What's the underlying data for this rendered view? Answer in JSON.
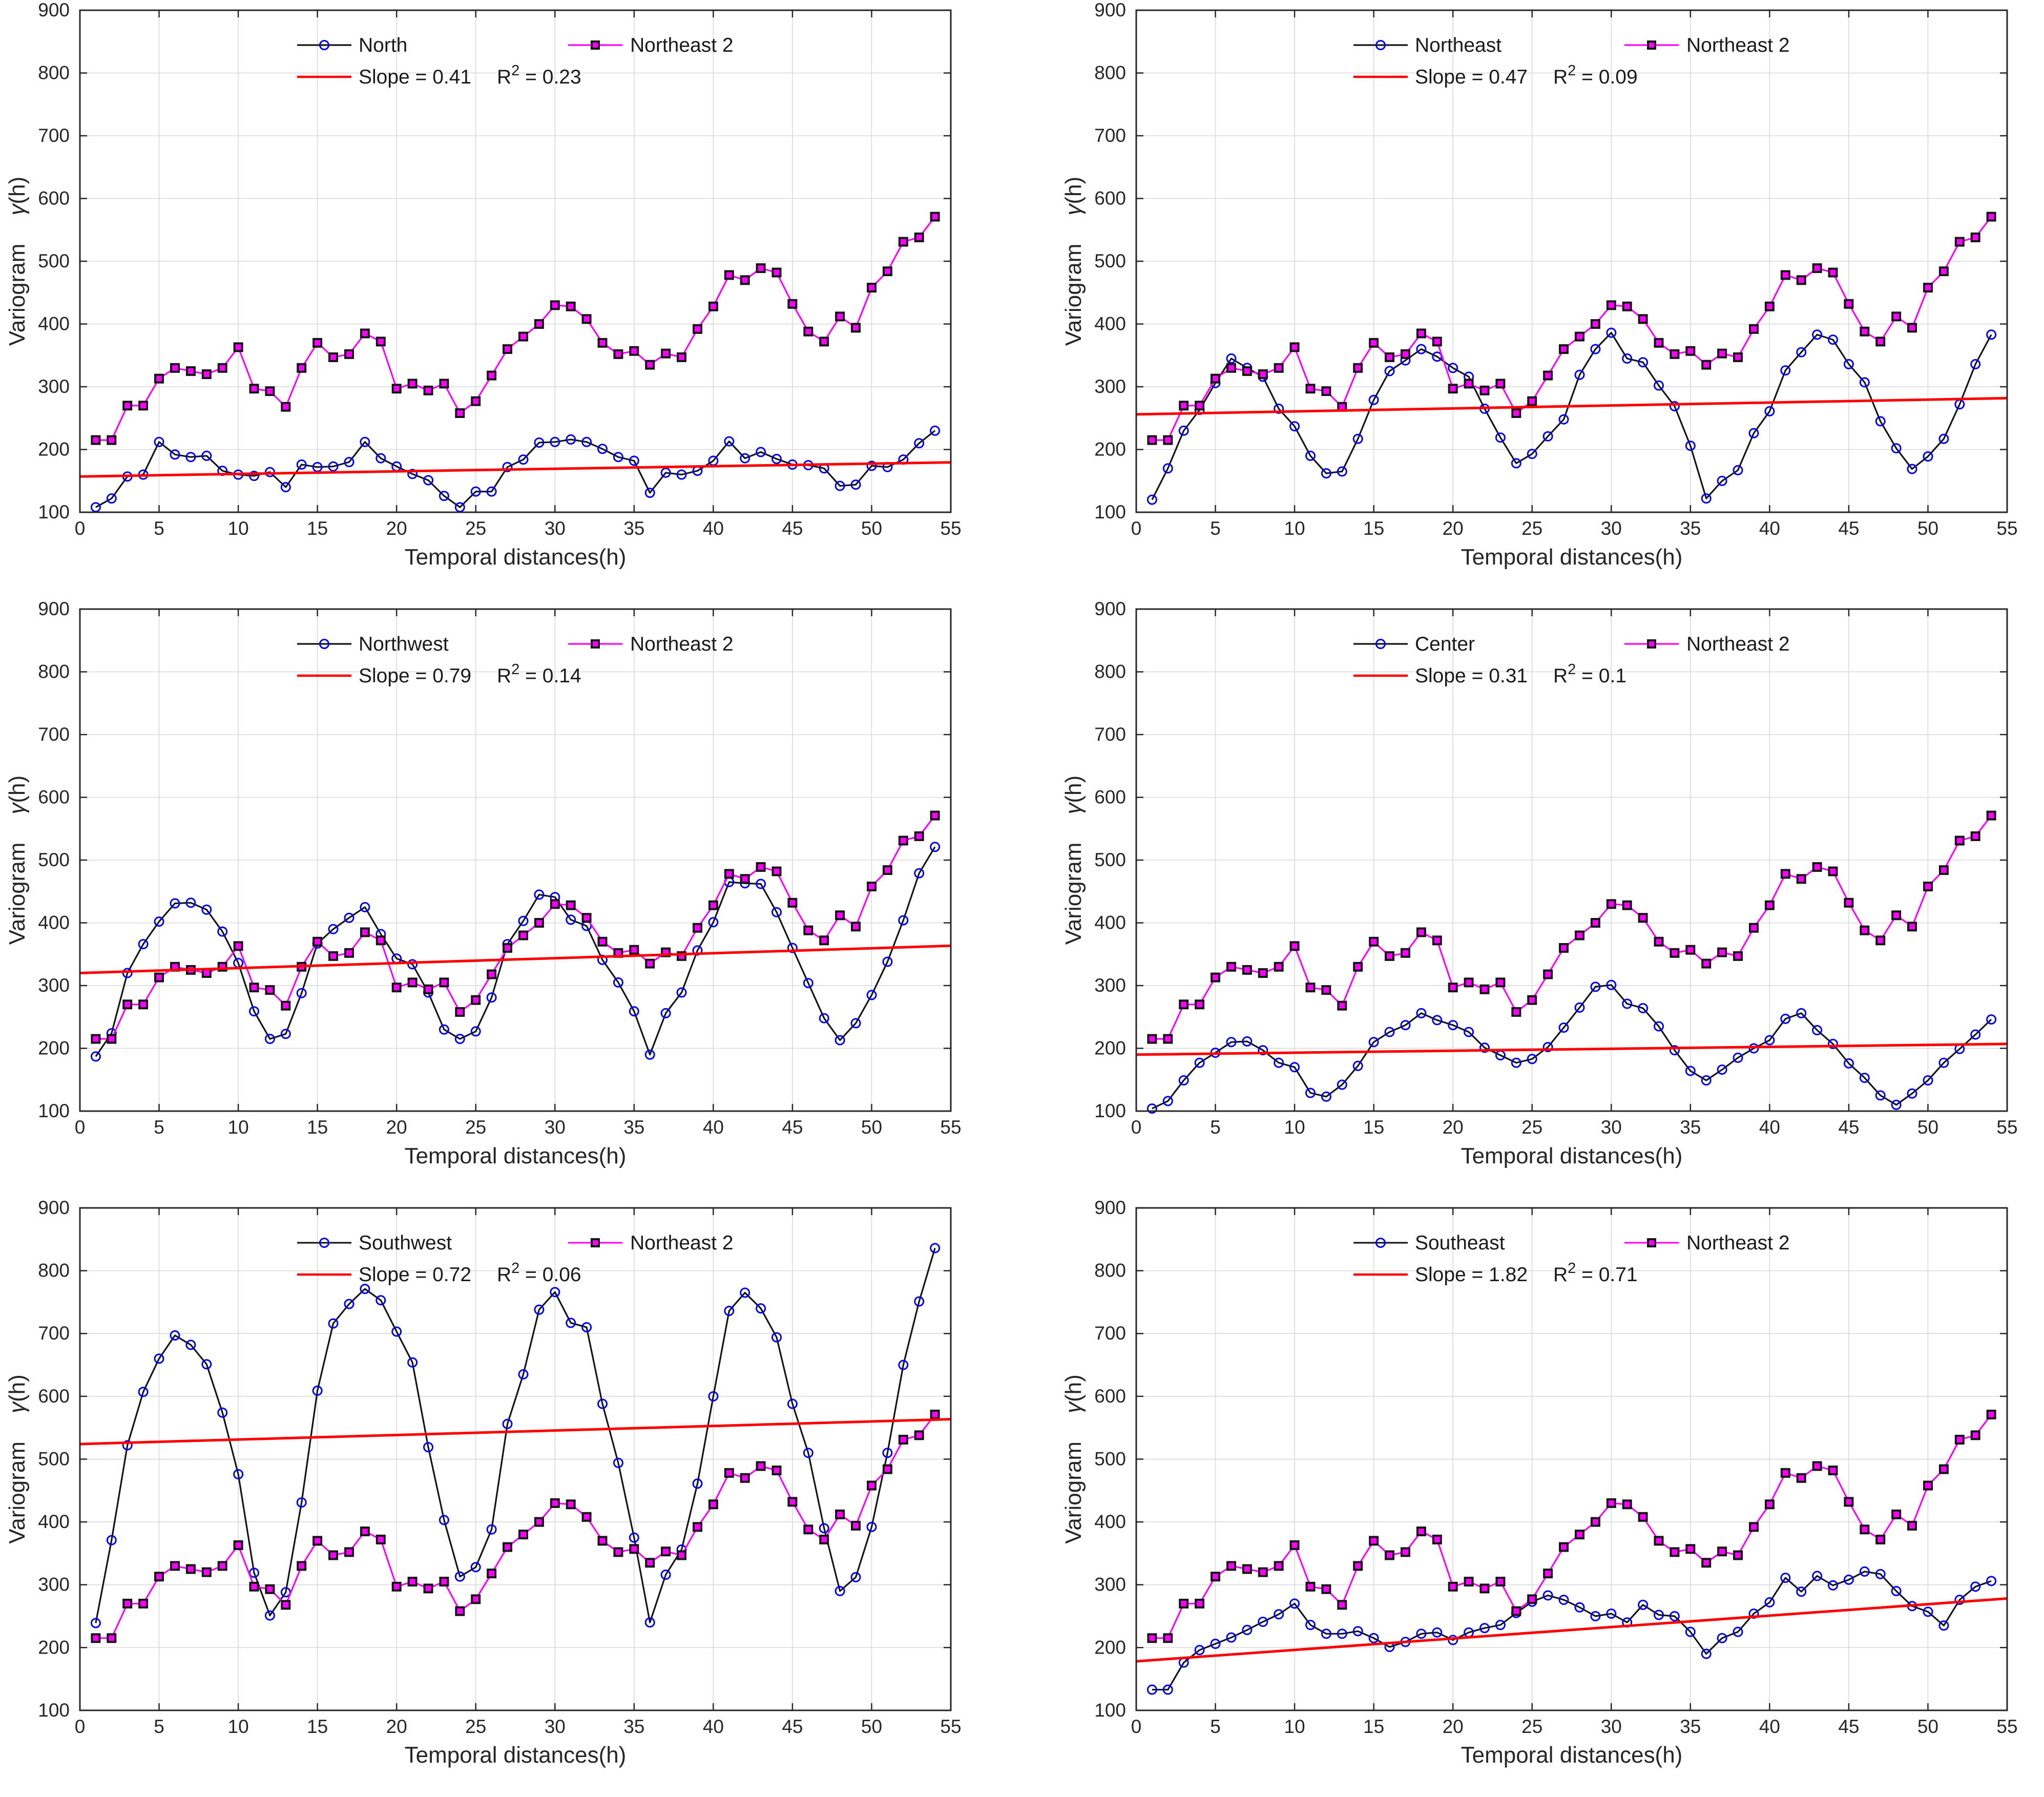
{
  "figure": {
    "background": "#ffffff",
    "xlabel": "Temporal distances(h)",
    "ylabel_main": "Variogram",
    "ylabel_symbol": "γ",
    "ylabel_units": "(h)",
    "xlim": [
      0,
      55
    ],
    "ylim": [
      100,
      900
    ],
    "xticks": [
      0,
      5,
      10,
      15,
      20,
      25,
      30,
      35,
      40,
      45,
      50,
      55
    ],
    "yticks": [
      100,
      200,
      300,
      400,
      500,
      600,
      700,
      800,
      900
    ],
    "grid": true,
    "legend_position": "top-inside",
    "colors": {
      "region_line": "#141414",
      "region_marker": "#0000f0",
      "reference_line": "#ff00ff",
      "reference_marker_fill": "#ff00ff",
      "reference_marker_edge": "#141414",
      "trend": "#ff0000",
      "grid": "#d9d9d9",
      "axis": "#262626"
    }
  },
  "chart_data": {
    "type": "line",
    "xlabel": "Temporal distances(h)",
    "ylabel": "Variogram γ(h)",
    "x": [
      1,
      2,
      3,
      4,
      5,
      6,
      7,
      8,
      9,
      10,
      11,
      12,
      13,
      14,
      15,
      16,
      17,
      18,
      19,
      20,
      21,
      22,
      23,
      24,
      25,
      26,
      27,
      28,
      29,
      30,
      31,
      32,
      33,
      34,
      35,
      36,
      37,
      38,
      39,
      40,
      41,
      42,
      43,
      44,
      45,
      46,
      47,
      48,
      49,
      50,
      51,
      52,
      53,
      54
    ],
    "reference_series": {
      "name": "Northeast 2",
      "marker": "square",
      "values": [
        215,
        215,
        270,
        270,
        313,
        330,
        325,
        320,
        330,
        363,
        297,
        293,
        268,
        330,
        370,
        347,
        352,
        385,
        372,
        297,
        305,
        294,
        305,
        258,
        277,
        318,
        360,
        380,
        400,
        430,
        428,
        408,
        370,
        352,
        357,
        335,
        353,
        347,
        392,
        428,
        478,
        470,
        489,
        482,
        432,
        388,
        372,
        412,
        394,
        458,
        484,
        531,
        538,
        571
      ]
    },
    "subplots": [
      {
        "region": "North",
        "marker": "circle",
        "slope": 0.41,
        "intercept": 157,
        "r2": 0.23,
        "slope_label": "Slope = 0.41",
        "r2_value": "0.23",
        "values": [
          108,
          122,
          157,
          160,
          212,
          192,
          188,
          190,
          166,
          160,
          158,
          164,
          140,
          176,
          172,
          173,
          180,
          212,
          186,
          173,
          161,
          151,
          126,
          108,
          133,
          133,
          172,
          184,
          211,
          212,
          216,
          212,
          201,
          188,
          182,
          131,
          163,
          160,
          166,
          182,
          213,
          186,
          196,
          185,
          176,
          175,
          170,
          142,
          144,
          174,
          172,
          184,
          210,
          230
        ]
      },
      {
        "region": "Northeast",
        "marker": "circle",
        "slope": 0.47,
        "intercept": 256,
        "r2": 0.09,
        "slope_label": "Slope = 0.47",
        "r2_value": "0.09",
        "values": [
          120,
          170,
          230,
          263,
          306,
          345,
          330,
          316,
          265,
          237,
          190,
          162,
          165,
          217,
          279,
          325,
          342,
          360,
          348,
          330,
          316,
          265,
          219,
          178,
          193,
          221,
          248,
          319,
          360,
          386,
          345,
          339,
          302,
          269,
          206,
          122,
          150,
          167,
          226,
          261,
          326,
          355,
          383,
          375,
          336,
          307,
          245,
          202,
          169,
          189,
          217,
          272,
          336,
          383
        ]
      },
      {
        "region": "Northwest",
        "marker": "circle",
        "slope": 0.79,
        "intercept": 320,
        "r2": 0.14,
        "slope_label": "Slope = 0.79",
        "r2_value": "0.14",
        "values": [
          187,
          224,
          320,
          366,
          402,
          431,
          432,
          421,
          386,
          336,
          259,
          215,
          223,
          288,
          367,
          390,
          408,
          425,
          382,
          343,
          334,
          289,
          230,
          215,
          227,
          281,
          366,
          403,
          445,
          441,
          405,
          395,
          341,
          305,
          259,
          190,
          256,
          289,
          356,
          401,
          465,
          463,
          462,
          417,
          360,
          304,
          248,
          213,
          240,
          285,
          338,
          404,
          479,
          521
        ]
      },
      {
        "region": "Center",
        "marker": "circle",
        "slope": 0.31,
        "intercept": 190,
        "r2": 0.1,
        "slope_label": "Slope = 0.31",
        "r2_value": "0.1",
        "values": [
          104,
          116,
          149,
          177,
          193,
          210,
          211,
          197,
          177,
          170,
          129,
          123,
          142,
          172,
          210,
          226,
          237,
          256,
          245,
          237,
          226,
          201,
          189,
          177,
          183,
          202,
          233,
          265,
          298,
          301,
          271,
          264,
          235,
          197,
          164,
          149,
          166,
          185,
          200,
          213,
          247,
          256,
          229,
          207,
          176,
          153,
          125,
          110,
          128,
          149,
          177,
          199,
          222,
          246
        ]
      },
      {
        "region": "Southwest",
        "marker": "circle",
        "slope": 0.72,
        "intercept": 524,
        "r2": 0.06,
        "slope_label": "Slope = 0.72",
        "r2_value": "0.06",
        "values": [
          239,
          371,
          522,
          607,
          660,
          697,
          682,
          651,
          574,
          476,
          319,
          251,
          288,
          431,
          609,
          716,
          747,
          771,
          753,
          703,
          654,
          519,
          403,
          313,
          328,
          388,
          556,
          635,
          738,
          766,
          717,
          710,
          588,
          494,
          375,
          240,
          316,
          356,
          461,
          600,
          736,
          765,
          740,
          694,
          588,
          510,
          390,
          290,
          312,
          392,
          510,
          650,
          751,
          836
        ]
      },
      {
        "region": "Southeast",
        "marker": "circle",
        "slope": 1.82,
        "intercept": 178,
        "r2": 0.71,
        "slope_label": "Slope = 1.82",
        "r2_value": "0.71",
        "values": [
          133,
          133,
          176,
          196,
          206,
          216,
          228,
          241,
          253,
          270,
          236,
          222,
          222,
          226,
          215,
          201,
          209,
          222,
          224,
          212,
          224,
          231,
          236,
          255,
          273,
          283,
          276,
          264,
          250,
          254,
          240,
          268,
          252,
          250,
          225,
          190,
          215,
          225,
          254,
          272,
          311,
          289,
          314,
          299,
          308,
          321,
          317,
          290,
          266,
          257,
          235,
          276,
          297,
          306
        ]
      }
    ]
  }
}
